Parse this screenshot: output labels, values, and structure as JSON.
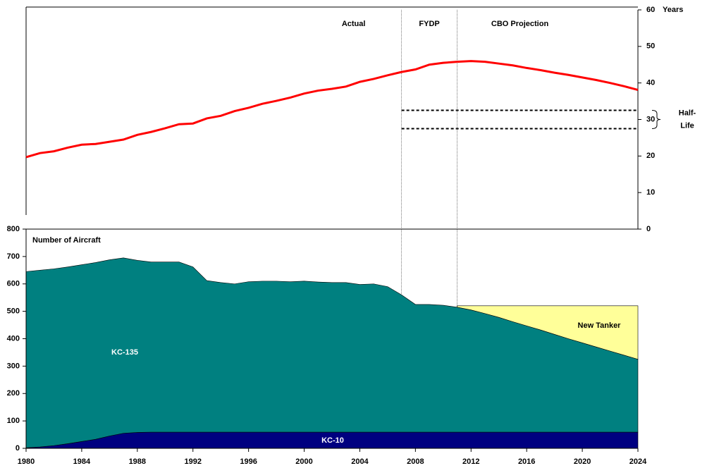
{
  "chart_data": [
    {
      "type": "line",
      "ylabel": "Years",
      "x": [
        1980,
        1981,
        1982,
        1983,
        1984,
        1985,
        1986,
        1987,
        1988,
        1989,
        1990,
        1991,
        1992,
        1993,
        1994,
        1995,
        1996,
        1997,
        1998,
        1999,
        2000,
        2001,
        2002,
        2003,
        2004,
        2005,
        2006,
        2007,
        2008,
        2009,
        2010,
        2011,
        2012,
        2013,
        2014,
        2015,
        2016,
        2017,
        2018,
        2019,
        2020,
        2021,
        2022,
        2023,
        2024
      ],
      "xlim": [
        1980,
        2024
      ],
      "ylim": [
        0,
        60
      ],
      "yticks": [
        0,
        10,
        20,
        30,
        40,
        50,
        60
      ],
      "series": [
        {
          "color": "#ff0000",
          "values": [
            19.7,
            20.8,
            21.3,
            22.3,
            23.1,
            23.3,
            23.9,
            24.5,
            25.8,
            26.6,
            27.6,
            28.7,
            28.9,
            30.3,
            31.0,
            32.3,
            33.2,
            34.3,
            35.1,
            36.0,
            37.1,
            37.9,
            38.4,
            39.0,
            40.3,
            41.1,
            42.1,
            43.0,
            43.7,
            45.0,
            45.5,
            45.8,
            46.0,
            45.8,
            45.3,
            44.8,
            44.1,
            43.5,
            42.8,
            42.2,
            41.5,
            40.8,
            40.0,
            39.1,
            38.1
          ]
        }
      ],
      "periods": [
        {
          "label": "Actual",
          "end": 2007
        },
        {
          "label": "FYDP",
          "start": 2007,
          "end": 2011
        },
        {
          "label": "CBO Projection",
          "start": 2011
        }
      ],
      "half_life": {
        "label": [
          "Half-",
          "Life"
        ],
        "range": [
          27.5,
          32.5
        ]
      }
    },
    {
      "type": "area",
      "stacked": true,
      "ylabel": "Number of Aircraft",
      "x": [
        1980,
        1981,
        1982,
        1983,
        1984,
        1985,
        1986,
        1987,
        1988,
        1989,
        1990,
        1991,
        1992,
        1993,
        1994,
        1995,
        1996,
        1997,
        1998,
        1999,
        2000,
        2001,
        2002,
        2003,
        2004,
        2005,
        2006,
        2007,
        2008,
        2009,
        2010,
        2011,
        2012,
        2013,
        2014,
        2015,
        2016,
        2017,
        2018,
        2019,
        2020,
        2021,
        2022,
        2023,
        2024
      ],
      "xlim": [
        1980,
        2024
      ],
      "xticks": [
        1980,
        1984,
        1988,
        1992,
        1996,
        2000,
        2004,
        2008,
        2012,
        2016,
        2020,
        2024
      ],
      "ylim": [
        0,
        800
      ],
      "yticks": [
        0,
        100,
        200,
        300,
        400,
        500,
        600,
        700,
        800
      ],
      "series": [
        {
          "name": "KC-10",
          "color": "#000080",
          "values": [
            2,
            5,
            10,
            17,
            25,
            33,
            45,
            55,
            58,
            59,
            59,
            59,
            59,
            59,
            59,
            59,
            59,
            59,
            59,
            59,
            59,
            59,
            59,
            59,
            59,
            59,
            59,
            59,
            59,
            59,
            59,
            59,
            59,
            59,
            59,
            59,
            59,
            59,
            59,
            59,
            59,
            59,
            59,
            59,
            59
          ]
        },
        {
          "name": "KC-135",
          "color": "#008080",
          "values": [
            643,
            645,
            645,
            645,
            645,
            645,
            643,
            640,
            628,
            621,
            621,
            621,
            603,
            553,
            546,
            541,
            549,
            551,
            551,
            549,
            551,
            548,
            546,
            546,
            539,
            541,
            531,
            501,
            466,
            466,
            463,
            456,
            446,
            433,
            419,
            403,
            388,
            373,
            357,
            341,
            326,
            311,
            296,
            281,
            266
          ]
        },
        {
          "name": "New Tanker",
          "color": "#ffff99",
          "values": [
            null,
            null,
            null,
            null,
            null,
            null,
            null,
            null,
            null,
            null,
            null,
            null,
            null,
            null,
            null,
            null,
            null,
            null,
            null,
            null,
            null,
            null,
            null,
            null,
            null,
            null,
            null,
            null,
            null,
            null,
            null,
            5,
            15,
            28,
            42,
            58,
            73,
            88,
            104,
            120,
            135,
            150,
            165,
            180,
            195
          ]
        }
      ]
    }
  ]
}
